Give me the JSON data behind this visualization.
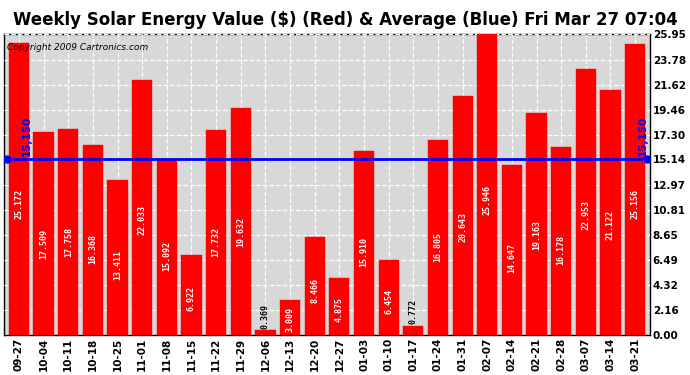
{
  "title": "Weekly Solar Energy Value ($) (Red) & Average (Blue) Fri Mar 27 07:04",
  "copyright": "Copyright 2009 Cartronics.com",
  "bar_values": [
    25.172,
    17.509,
    17.758,
    16.368,
    13.411,
    22.033,
    15.092,
    6.922,
    17.732,
    19.632,
    0.369,
    3.009,
    8.466,
    4.875,
    15.91,
    6.454,
    0.772,
    16.805,
    20.643,
    25.946,
    14.647,
    19.163,
    16.178,
    22.953,
    21.122,
    25.156
  ],
  "x_labels": [
    "09-27",
    "10-04",
    "10-11",
    "10-18",
    "10-25",
    "11-01",
    "11-08",
    "11-15",
    "11-22",
    "11-29",
    "12-06",
    "12-13",
    "12-20",
    "12-27",
    "01-03",
    "01-10",
    "01-17",
    "01-24",
    "01-31",
    "02-07",
    "02-14",
    "02-21",
    "02-28",
    "03-07",
    "03-14",
    "03-21"
  ],
  "average_value": 15.15,
  "bar_color": "#ff0000",
  "average_color": "#0000ff",
  "background_color": "#ffffff",
  "plot_bg_color": "#d8d8d8",
  "grid_color": "#ffffff",
  "yticks": [
    0.0,
    2.16,
    4.32,
    6.49,
    8.65,
    10.81,
    12.97,
    15.14,
    17.3,
    19.46,
    21.62,
    23.78,
    25.95
  ],
  "ylim": [
    0,
    25.95
  ],
  "title_fontsize": 12,
  "tick_fontsize": 7.5,
  "bar_label_fontsize": 6.0,
  "avg_label": "15,150"
}
